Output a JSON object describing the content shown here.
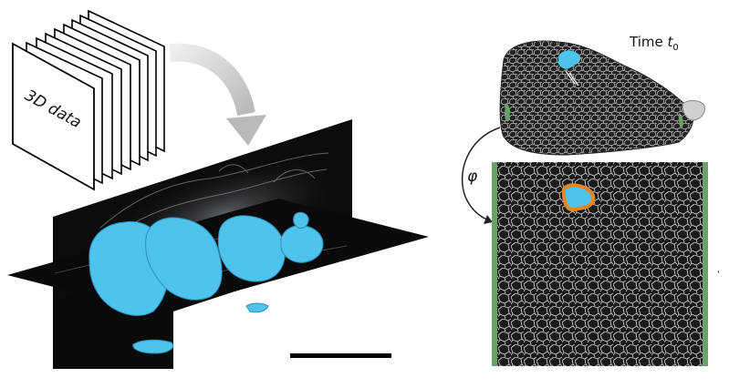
{
  "stack": {
    "label": "3D data"
  },
  "time_label": {
    "prefix": "Time ",
    "symbol": "t",
    "subscript": "0"
  },
  "mapping": {
    "symbol": "φ"
  },
  "colors": {
    "segmentation": "#4fc3ec",
    "tissue_dark": "#151515",
    "boundary": "#6aa26a",
    "outline": "#e8861e",
    "arrow_gray": "#c4c4c4",
    "scale_bar": "#000000"
  }
}
